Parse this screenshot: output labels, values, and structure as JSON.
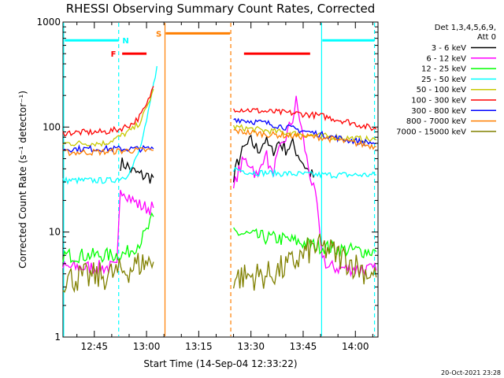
{
  "chart_data": {
    "type": "line",
    "title": "RHESSI Observing Summary Count Rates, Corrected",
    "xlabel": "Start Time (14-Sep-04 12:33:22)",
    "ylabel": "Corrected Count Rate (s⁻¹ detector⁻¹)",
    "ylim": [
      1,
      1000
    ],
    "xlim": [
      36.0,
      126.5
    ],
    "yscale": "log",
    "grid": false,
    "legend_placement": "right",
    "xtick_values": [
      45,
      60,
      75,
      90,
      105,
      120
    ],
    "xtick_labels": [
      "12:45",
      "13:00",
      "13:15",
      "13:30",
      "13:45",
      "14:00"
    ],
    "ytick_values": [
      1,
      10,
      100,
      1000
    ],
    "ytick_labels": [
      "1",
      "10",
      "100",
      "1000"
    ],
    "legend_header": [
      "Det 1,3,4,5,6,9,",
      "Att 0"
    ],
    "timestamp": "20-Oct-2021 23:28",
    "series": [
      {
        "name": "3 - 6 keV",
        "color": "#000000",
        "segments": [
          [
            [
              52.5,
              45
            ],
            [
              54,
              44
            ],
            [
              56,
              38
            ],
            [
              58,
              35
            ],
            [
              60,
              34
            ],
            [
              62,
              33
            ]
          ],
          [
            [
              85,
              30
            ],
            [
              86,
              45
            ],
            [
              88,
              62
            ],
            [
              90,
              73
            ],
            [
              92,
              60
            ],
            [
              94,
              75
            ],
            [
              96,
              58
            ],
            [
              98,
              72
            ],
            [
              100,
              62
            ],
            [
              102,
              68
            ],
            [
              104,
              52
            ],
            [
              106,
              40
            ],
            [
              108,
              33
            ]
          ]
        ]
      },
      {
        "name": "6 - 12 keV",
        "color": "#ff00ff",
        "segments": [
          [
            [
              36,
              4.6
            ],
            [
              50,
              4.6
            ],
            [
              51.5,
              4.5
            ],
            [
              52.5,
              27
            ],
            [
              54,
              24
            ],
            [
              56,
              20
            ],
            [
              58,
              18
            ],
            [
              60,
              17
            ],
            [
              62,
              17
            ]
          ],
          [
            [
              85,
              25
            ],
            [
              86,
              35
            ],
            [
              88,
              48
            ],
            [
              90,
              45
            ],
            [
              92,
              32
            ],
            [
              94,
              60
            ],
            [
              96,
              35
            ],
            [
              98,
              55
            ],
            [
              100,
              80
            ],
            [
              102,
              120
            ],
            [
              103,
              175
            ],
            [
              104,
              120
            ],
            [
              106,
              50
            ],
            [
              108,
              25
            ],
            [
              109,
              18
            ],
            [
              110,
              7
            ],
            [
              112,
              4.6
            ],
            [
              120,
              4.5
            ],
            [
              126,
              4.3
            ]
          ]
        ]
      },
      {
        "name": "12 - 25 keV",
        "color": "#00ff00",
        "segments": [
          [
            [
              36,
              6
            ],
            [
              50,
              6
            ],
            [
              54,
              6.2
            ],
            [
              56,
              7
            ],
            [
              58,
              8
            ],
            [
              60,
              10
            ],
            [
              61,
              12
            ],
            [
              62,
              14
            ]
          ],
          [
            [
              85,
              10
            ],
            [
              92,
              9
            ],
            [
              100,
              8.5
            ],
            [
              108,
              7.5
            ],
            [
              116,
              6.8
            ],
            [
              126,
              6.5
            ]
          ]
        ]
      },
      {
        "name": "25 - 50 keV",
        "color": "#00ffff",
        "segments": [
          [
            [
              36,
              31
            ],
            [
              50,
              31
            ],
            [
              54,
              34
            ],
            [
              56,
              42
            ],
            [
              58,
              60
            ],
            [
              60,
              110
            ],
            [
              62,
              250
            ],
            [
              63,
              380
            ]
          ],
          [
            [
              85,
              40
            ],
            [
              90,
              37
            ],
            [
              100,
              36
            ],
            [
              110,
              35
            ],
            [
              120,
              35
            ],
            [
              126,
              35
            ]
          ]
        ]
      },
      {
        "name": "50 - 100 keV",
        "color": "#c8c800",
        "segments": [
          [
            [
              36,
              70
            ],
            [
              48,
              70
            ],
            [
              52,
              80
            ],
            [
              56,
              95
            ],
            [
              58,
              110
            ],
            [
              60,
              150
            ],
            [
              62,
              230
            ]
          ],
          [
            [
              85,
              100
            ],
            [
              95,
              92
            ],
            [
              105,
              85
            ],
            [
              115,
              80
            ],
            [
              126,
              75
            ]
          ]
        ]
      },
      {
        "name": "100 - 300 keV",
        "color": "#ff0000",
        "segments": [
          [
            [
              36,
              88
            ],
            [
              48,
              90
            ],
            [
              52,
              95
            ],
            [
              56,
              108
            ],
            [
              58,
              125
            ],
            [
              60,
              160
            ],
            [
              62,
              245
            ]
          ],
          [
            [
              85,
              150
            ],
            [
              95,
              140
            ],
            [
              103,
              135
            ],
            [
              110,
              128
            ],
            [
              118,
              112
            ],
            [
              126,
              95
            ]
          ]
        ]
      },
      {
        "name": "300 - 800 keV",
        "color": "#0000ff",
        "segments": [
          [
            [
              36,
              62
            ],
            [
              48,
              62
            ],
            [
              52,
              62
            ],
            [
              56,
              62
            ],
            [
              60,
              62
            ],
            [
              62,
              62
            ]
          ],
          [
            [
              85,
              120
            ],
            [
              95,
              108
            ],
            [
              103,
              95
            ],
            [
              110,
              85
            ],
            [
              118,
              75
            ],
            [
              126,
              70
            ]
          ]
        ]
      },
      {
        "name": "800 - 7000 keV",
        "color": "#ff7f00",
        "segments": [
          [
            [
              36,
              57
            ],
            [
              48,
              58
            ],
            [
              56,
              60
            ],
            [
              62,
              60
            ]
          ],
          [
            [
              85,
              92
            ],
            [
              95,
              85
            ],
            [
              103,
              82
            ],
            [
              110,
              80
            ],
            [
              118,
              72
            ],
            [
              126,
              65
            ]
          ]
        ]
      },
      {
        "name": "7000 - 15000 keV",
        "color": "#808000",
        "segments": [
          [
            [
              36,
              3.6
            ],
            [
              48,
              3.8
            ],
            [
              54,
              4.3
            ],
            [
              58,
              5
            ],
            [
              62,
              5.2
            ]
          ],
          [
            [
              85,
              3.7
            ],
            [
              95,
              3.9
            ],
            [
              100,
              4.6
            ],
            [
              105,
              6
            ],
            [
              108,
              7.2
            ],
            [
              112,
              6.8
            ],
            [
              118,
              5.3
            ],
            [
              126,
              3.7
            ]
          ]
        ]
      }
    ],
    "vertical_lines": [
      {
        "x": 36.2,
        "color": "#00ffff",
        "style": "solid"
      },
      {
        "x": 52,
        "color": "#00ffff",
        "style": "dashed"
      },
      {
        "x": 65.3,
        "color": "#ff7f00",
        "style": "solid"
      },
      {
        "x": 84.2,
        "color": "#ff7f00",
        "style": "dashed"
      },
      {
        "x": 110.3,
        "color": "#00ffff",
        "style": "solid"
      },
      {
        "x": 125.5,
        "color": "#00ffff",
        "style": "dashed"
      }
    ],
    "flag_bars": [
      {
        "label": "N",
        "color": "#00ffff",
        "y": 670,
        "ranges": [
          [
            36.5,
            52
          ],
          [
            110.5,
            125.5
          ]
        ]
      },
      {
        "label": "S",
        "color": "#ff7f00",
        "y": 780,
        "ranges": [
          [
            65.5,
            84
          ]
        ]
      },
      {
        "label": "F",
        "color": "#ff0000",
        "y": 500,
        "ranges": [
          [
            53,
            60
          ],
          [
            88,
            107
          ]
        ]
      }
    ],
    "flag_label_positions": {
      "N": 54,
      "S": 63.5,
      "F": 50.5
    }
  }
}
